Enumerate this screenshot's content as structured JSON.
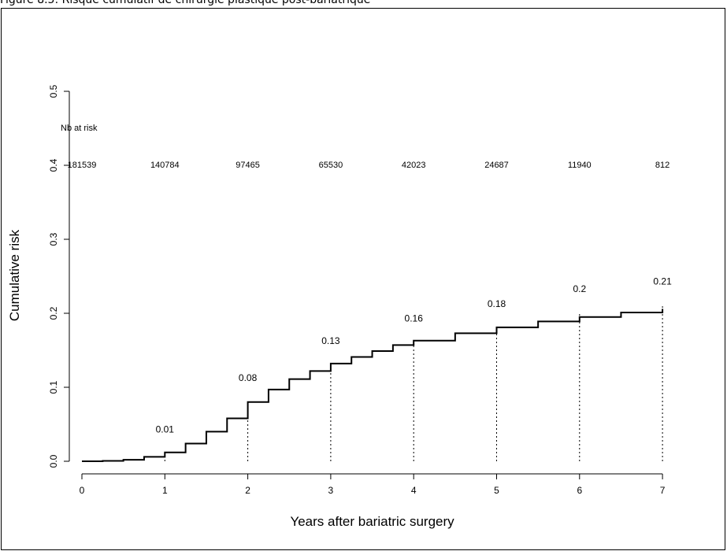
{
  "figure": {
    "title": "Figure 8.5: Risque cumulatif de chirurgie plastique post-bariatrique"
  },
  "chart_data": {
    "type": "line",
    "title": "",
    "xlabel": "Years after bariatric surgery",
    "ylabel": "Cumulative risk",
    "xlim": [
      0,
      7
    ],
    "ylim": [
      0,
      0.5
    ],
    "x_ticks": [
      "0",
      "1",
      "2",
      "3",
      "4",
      "5",
      "6",
      "7"
    ],
    "y_ticks": [
      "0.0",
      "0.1",
      "0.2",
      "0.3",
      "0.4",
      "0.5"
    ],
    "step": true,
    "grid": false,
    "series": [
      {
        "x": [
          0,
          0.25,
          0.5,
          0.75,
          1,
          1.25,
          1.5,
          1.75,
          2,
          2.25,
          2.5,
          2.75,
          3,
          3.25,
          3.5,
          3.75,
          4,
          4.5,
          5,
          5.5,
          6,
          6.5,
          7
        ],
        "y": [
          0,
          0.0005,
          0.002,
          0.006,
          0.012,
          0.024,
          0.04,
          0.058,
          0.08,
          0.097,
          0.111,
          0.122,
          0.132,
          0.141,
          0.149,
          0.157,
          0.163,
          0.173,
          0.181,
          0.189,
          0.195,
          0.201,
          0.206
        ]
      }
    ],
    "markers": [
      {
        "x": 1,
        "y": 0.01,
        "label": "0.01"
      },
      {
        "x": 2,
        "y": 0.08,
        "label": "0.08"
      },
      {
        "x": 3,
        "y": 0.13,
        "label": "0.13"
      },
      {
        "x": 4,
        "y": 0.16,
        "label": "0.16"
      },
      {
        "x": 5,
        "y": 0.18,
        "label": "0.18"
      },
      {
        "x": 6,
        "y": 0.2,
        "label": "0.2"
      },
      {
        "x": 7,
        "y": 0.21,
        "label": "0.21"
      }
    ],
    "at_risk": {
      "label": "Nb at risk",
      "x": [
        0,
        1,
        2,
        3,
        4,
        5,
        6,
        7
      ],
      "values": [
        "181539",
        "140784",
        "97465",
        "65530",
        "42023",
        "24687",
        "11940",
        "812"
      ]
    }
  }
}
